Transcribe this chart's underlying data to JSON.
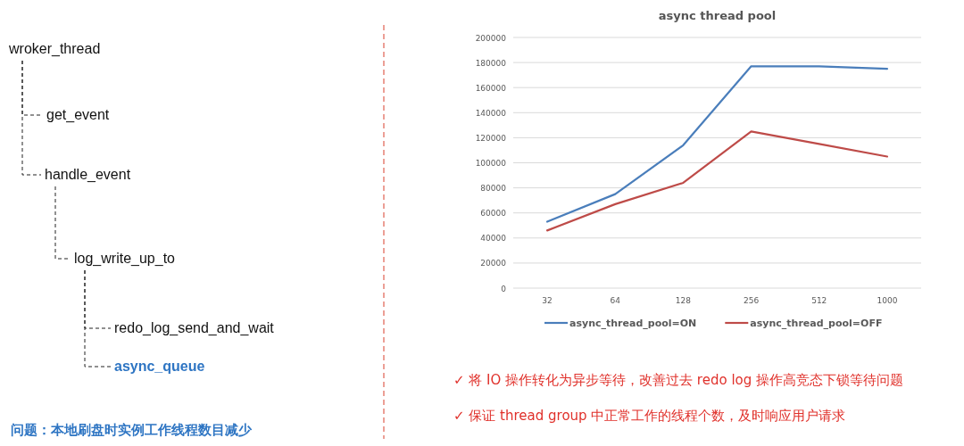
{
  "chart_data": [
    {
      "type": "other",
      "annotations": [
        "wroker_thread",
        "get_event",
        "handle_event",
        "log_write_up_to",
        "redo_log_send_and_wait",
        "async_queue",
        "问题：本地刷盘时实例工作线程数目减少"
      ]
    },
    {
      "type": "line",
      "title": "async thread pool",
      "categories": [
        "32",
        "64",
        "128",
        "256",
        "512",
        "1000"
      ],
      "series": [
        {
          "name": "async_thread_pool=ON",
          "color": "#4a7ebb",
          "values": [
            53000,
            75000,
            114000,
            177000,
            177000,
            175000
          ]
        },
        {
          "name": "async_thread_pool=OFF",
          "color": "#be4b48",
          "values": [
            46000,
            67000,
            84000,
            125000,
            115000,
            105000
          ]
        }
      ],
      "ylim": [
        0,
        200000
      ],
      "yticks": [
        0,
        20000,
        40000,
        60000,
        80000,
        100000,
        120000,
        140000,
        160000,
        180000,
        200000
      ],
      "grid": "y",
      "legend": "bottom",
      "marker": "none",
      "line_style": "solid",
      "annotations": [
        "✓  将 IO 操作转化为异步等待，改善过去 redo log 操作高竞态下锁等待问题",
        "✓  保证 thread group 中正常工作的线程个数，及时响应用户请求"
      ]
    }
  ]
}
